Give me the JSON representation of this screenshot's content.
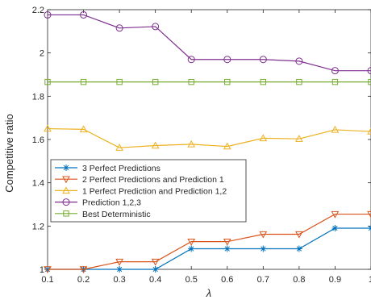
{
  "chart_data": {
    "type": "line",
    "title": "",
    "xlabel": "λ",
    "ylabel": "Competitive ratio",
    "x": [
      0.1,
      0.2,
      0.3,
      0.4,
      0.5,
      0.6,
      0.7,
      0.8,
      0.9,
      1.0
    ],
    "xlim": [
      0.1,
      1.0
    ],
    "ylim": [
      1.0,
      2.2
    ],
    "x_ticks": [
      0.1,
      0.2,
      0.3,
      0.4,
      0.5,
      0.6,
      0.7,
      0.8,
      0.9,
      1
    ],
    "x_tick_labels": [
      "0.1",
      "0.2",
      "0.3",
      "0.4",
      "0.5",
      "0.6",
      "0.7",
      "0.8",
      "0.9",
      "1"
    ],
    "y_ticks": [
      1.0,
      1.2,
      1.4,
      1.6,
      1.8,
      2.0,
      2.2
    ],
    "y_tick_labels": [
      "1",
      "1.2",
      "1.4",
      "1.6",
      "1.8",
      "2",
      "2.2"
    ],
    "grid": false,
    "legend_placement": "lower-left",
    "series": [
      {
        "name": "3 Perfect Predictions",
        "color": "#0072BD",
        "marker": "asterisk",
        "values": [
          1.0,
          1.0,
          1.0,
          1.0,
          1.095,
          1.095,
          1.095,
          1.095,
          1.19,
          1.19
        ]
      },
      {
        "name": "2 Perfect Predictions and Prediction 1",
        "color": "#D95319",
        "marker": "triangle-down",
        "values": [
          1.0,
          1.0,
          1.035,
          1.035,
          1.128,
          1.128,
          1.162,
          1.162,
          1.255,
          1.255
        ]
      },
      {
        "name": "1 Perfect Prediction and Prediction 1,2",
        "color": "#EDB120",
        "marker": "triangle-up",
        "values": [
          1.65,
          1.647,
          1.562,
          1.572,
          1.578,
          1.568,
          1.606,
          1.603,
          1.645,
          1.637
        ]
      },
      {
        "name": "Prediction 1,2,3",
        "color": "#7E2F8E",
        "marker": "circle",
        "values": [
          2.176,
          2.176,
          2.115,
          2.122,
          1.97,
          1.97,
          1.97,
          1.962,
          1.918,
          1.918
        ]
      },
      {
        "name": "Best Deterministic",
        "color": "#77AC30",
        "marker": "square",
        "values": [
          1.866,
          1.866,
          1.866,
          1.866,
          1.866,
          1.866,
          1.866,
          1.866,
          1.866,
          1.866
        ]
      }
    ]
  }
}
